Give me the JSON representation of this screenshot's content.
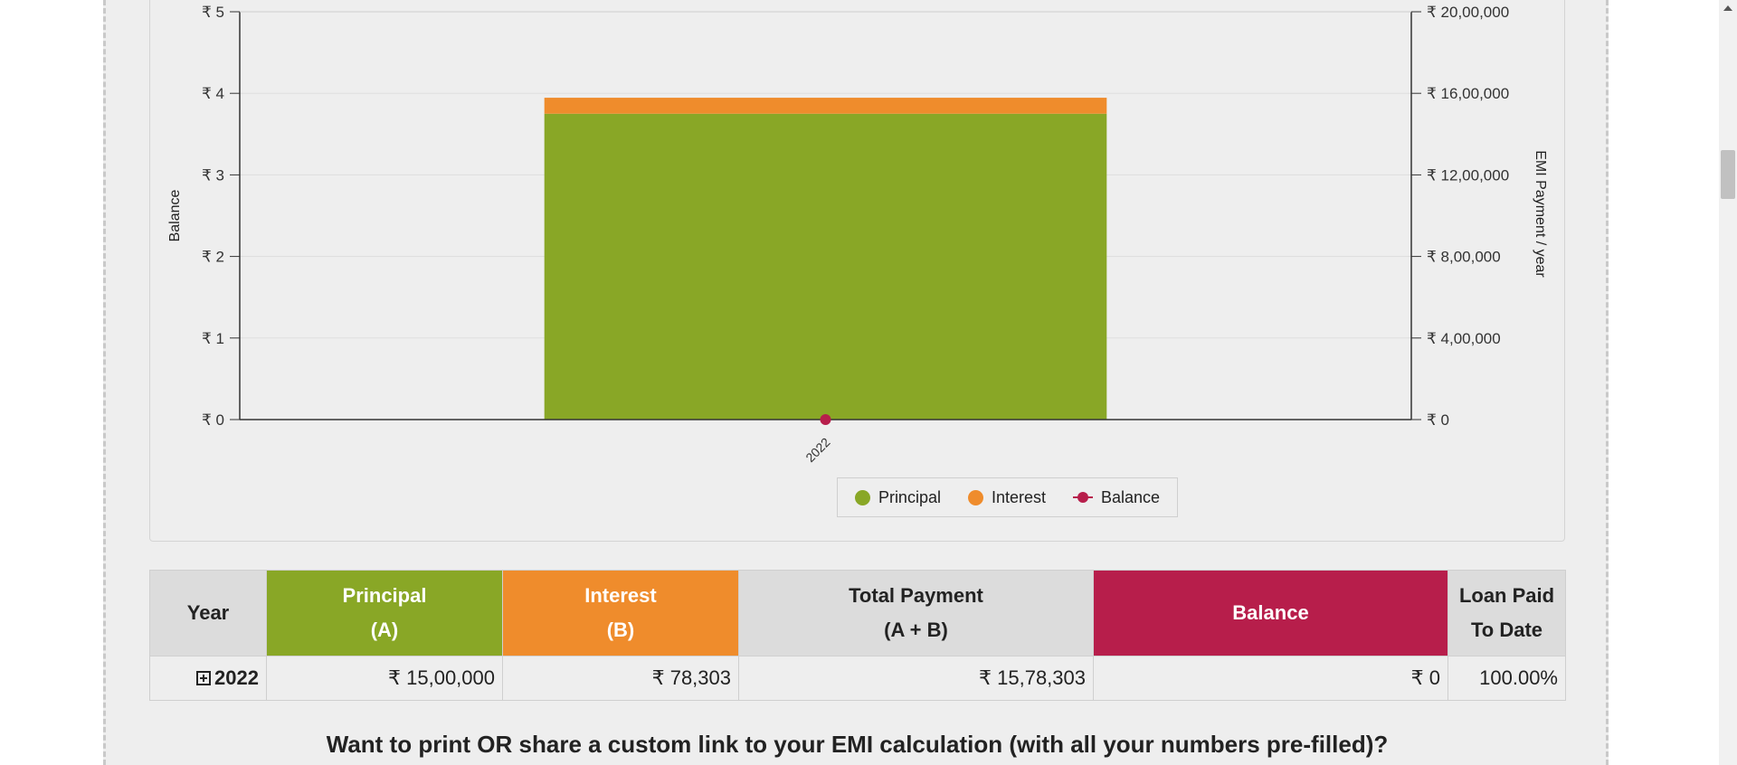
{
  "chart_data": {
    "type": "bar",
    "categories": [
      "2022"
    ],
    "series": [
      {
        "name": "Principal",
        "axis": "right",
        "values": [
          1500000
        ],
        "color": "#89a726"
      },
      {
        "name": "Interest",
        "axis": "right",
        "values": [
          78303
        ],
        "color": "#ef8c2c"
      },
      {
        "name": "Balance",
        "axis": "left",
        "type": "line",
        "values": [
          0
        ],
        "color": "#b71e4b"
      }
    ],
    "stacked": true,
    "ylabel_left": "Balance",
    "ylabel_right": "EMI Payment / year",
    "ylim_left": [
      0,
      5
    ],
    "ylim_right": [
      0,
      2000000
    ],
    "left_ticks": [
      "₹ 0",
      "₹ 1",
      "₹ 2",
      "₹ 3",
      "₹ 4",
      "₹ 5"
    ],
    "right_ticks": [
      "₹ 0",
      "₹ 4,00,000",
      "₹ 8,00,000",
      "₹ 12,00,000",
      "₹ 16,00,000",
      "₹ 20,00,000"
    ],
    "grid": true,
    "legend_placement": "bottom-center"
  },
  "legend": {
    "principal": "Principal",
    "interest": "Interest",
    "balance": "Balance"
  },
  "table": {
    "headers": {
      "year": "Year",
      "principal_1": "Principal",
      "principal_2": "(A)",
      "interest_1": "Interest",
      "interest_2": "(B)",
      "total_1": "Total Payment",
      "total_2": "(A + B)",
      "balance": "Balance",
      "paid_1": "Loan Paid",
      "paid_2": "To Date"
    },
    "rows": [
      {
        "year": "2022",
        "principal": "₹ 15,00,000",
        "interest": "₹ 78,303",
        "total": "₹ 15,78,303",
        "balance": "₹ 0",
        "paid": "100.00%"
      }
    ]
  },
  "share_prompt": "Want to print OR share a custom link to your EMI calculation (with all your numbers pre-filled)?",
  "colors": {
    "principal": "#89a726",
    "interest": "#ef8c2c",
    "balance": "#b71e4b"
  }
}
